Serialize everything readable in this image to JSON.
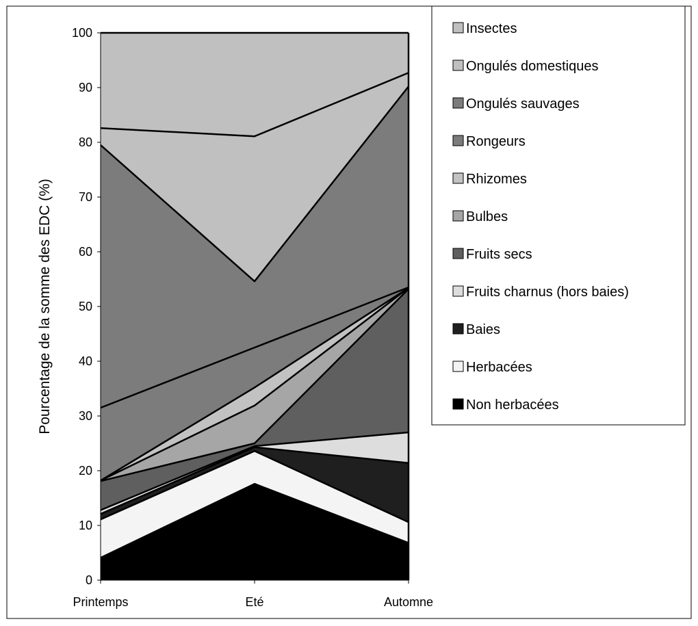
{
  "chart_data": {
    "type": "area",
    "stacked": true,
    "categories": [
      "Printemps",
      "Eté",
      "Automne"
    ],
    "title": "",
    "xlabel": "",
    "ylabel": "Pourcentage de la somme des EDC (%)",
    "ylim": [
      0,
      100
    ],
    "yticks": [
      0,
      10,
      20,
      30,
      40,
      50,
      60,
      70,
      80,
      90,
      100
    ],
    "grid": false,
    "legend_position": "right",
    "series": [
      {
        "name": "Non herbacées",
        "color": "#000000",
        "values": [
          4.1,
          17.6,
          6.8
        ]
      },
      {
        "name": "Herbacées",
        "color": "#f4f4f4",
        "values": [
          7.0,
          6.0,
          3.8
        ]
      },
      {
        "name": "Baies",
        "color": "#1f1f1f",
        "values": [
          1.0,
          0.7,
          10.8
        ]
      },
      {
        "name": "Fruits charnus (hors baies)",
        "color": "#dddddd",
        "values": [
          0.7,
          0.2,
          5.6
        ]
      },
      {
        "name": "Fruits secs",
        "color": "#5f5f5f",
        "values": [
          5.3,
          0.5,
          26.2
        ]
      },
      {
        "name": "Bulbes",
        "color": "#a6a6a6",
        "values": [
          0.1,
          6.9,
          0.2
        ]
      },
      {
        "name": "Rhizomes",
        "color": "#c2c2c2",
        "values": [
          0.0,
          3.3,
          0.0
        ]
      },
      {
        "name": "Rongeurs",
        "color": "#7c7c7c",
        "values": [
          13.3,
          7.3,
          0.1
        ]
      },
      {
        "name": "Ongulés sauvages",
        "color": "#7c7c7c",
        "values": [
          48.0,
          12.1,
          36.7
        ]
      },
      {
        "name": "Ongulés domestiques",
        "color": "#c0c0c0",
        "values": [
          3.1,
          26.5,
          2.5
        ]
      },
      {
        "name": "Insectes",
        "color": "#c0c0c0",
        "values": [
          17.4,
          18.9,
          7.3
        ]
      }
    ],
    "legend_order": [
      "Insectes",
      "Ongulés domestiques",
      "Ongulés sauvages",
      "Rongeurs",
      "Rhizomes",
      "Bulbes",
      "Fruits secs",
      "Fruits charnus (hors baies)",
      "Baies",
      "Herbacées",
      "Non herbacées"
    ]
  }
}
